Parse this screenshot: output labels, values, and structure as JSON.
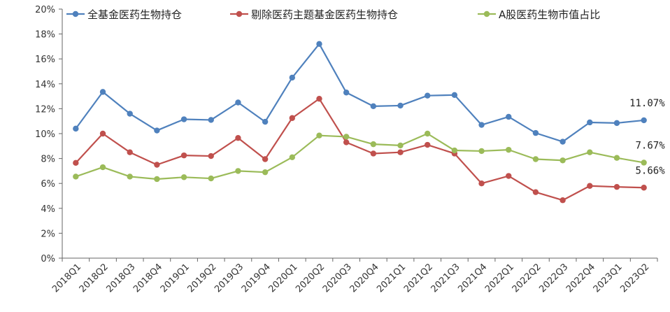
{
  "chart_data": {
    "type": "line",
    "title": "",
    "xlabel": "",
    "ylabel": "",
    "ylim": [
      0,
      20
    ],
    "y_tick_step": 2,
    "y_tick_labels": [
      "0%",
      "2%",
      "4%",
      "6%",
      "8%",
      "10%",
      "12%",
      "14%",
      "16%",
      "18%",
      "20%"
    ],
    "grid": false,
    "legend_position": "top",
    "categories": [
      "2018Q1",
      "2018Q2",
      "2018Q3",
      "2018Q4",
      "2019Q1",
      "2019Q2",
      "2019Q3",
      "2019Q4",
      "2020Q1",
      "2020Q2",
      "2020Q3",
      "2020Q4",
      "2021Q1",
      "2021Q2",
      "2021Q3",
      "2021Q4",
      "2022Q1",
      "2022Q2",
      "2022Q3",
      "2022Q4",
      "2023Q1",
      "2023Q2"
    ],
    "series": [
      {
        "name": "全基金医药生物持仓",
        "color": "#4f81bd",
        "values": [
          10.4,
          13.35,
          11.6,
          10.25,
          11.15,
          11.1,
          12.5,
          10.95,
          14.5,
          17.2,
          13.3,
          12.2,
          12.25,
          13.05,
          13.1,
          10.7,
          11.35,
          10.05,
          9.35,
          10.9,
          10.85,
          11.07
        ],
        "end_label": "11.07%"
      },
      {
        "name": "剔除医药主题基金医药生物持仓",
        "color": "#c0504d",
        "values": [
          7.65,
          10.0,
          8.5,
          7.5,
          8.25,
          8.2,
          9.65,
          7.95,
          11.25,
          12.8,
          9.3,
          8.4,
          8.5,
          9.1,
          8.4,
          6.0,
          6.6,
          5.3,
          4.65,
          5.8,
          5.72,
          5.66
        ],
        "end_label": "5.66%"
      },
      {
        "name": "A股医药生物市值占比",
        "color": "#9bbb59",
        "values": [
          6.55,
          7.3,
          6.55,
          6.35,
          6.5,
          6.4,
          7.0,
          6.9,
          8.1,
          9.85,
          9.75,
          9.15,
          9.05,
          10.0,
          8.65,
          8.6,
          8.7,
          7.95,
          7.85,
          8.5,
          8.05,
          7.67
        ],
        "end_label": "7.67%"
      }
    ]
  }
}
